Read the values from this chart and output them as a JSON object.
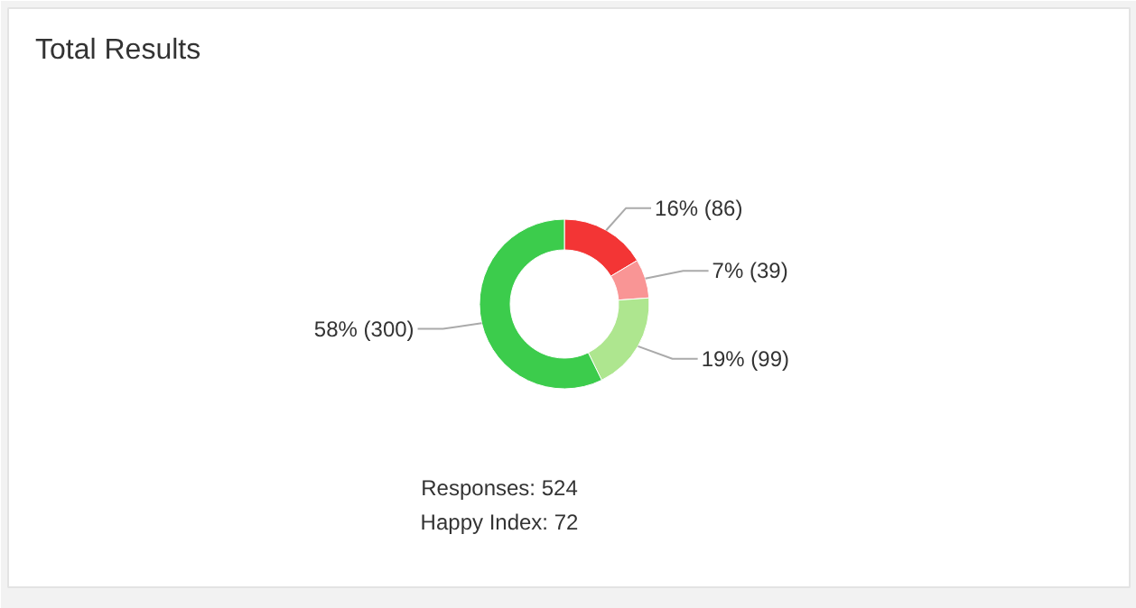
{
  "chart_data": {
    "type": "donut",
    "title": "Total Results",
    "categories": [
      null,
      null,
      null,
      null
    ],
    "values": [
      86,
      39,
      99,
      300
    ],
    "colors": [
      "#f33535",
      "#f99595",
      "#aee68f",
      "#3ccc4c"
    ],
    "value_labels": [
      "16% (86)",
      "7% (39)",
      "19% (99)",
      "58% (300)"
    ],
    "annotations": [
      "Responses: 524",
      "Happy Index: 72"
    ]
  }
}
